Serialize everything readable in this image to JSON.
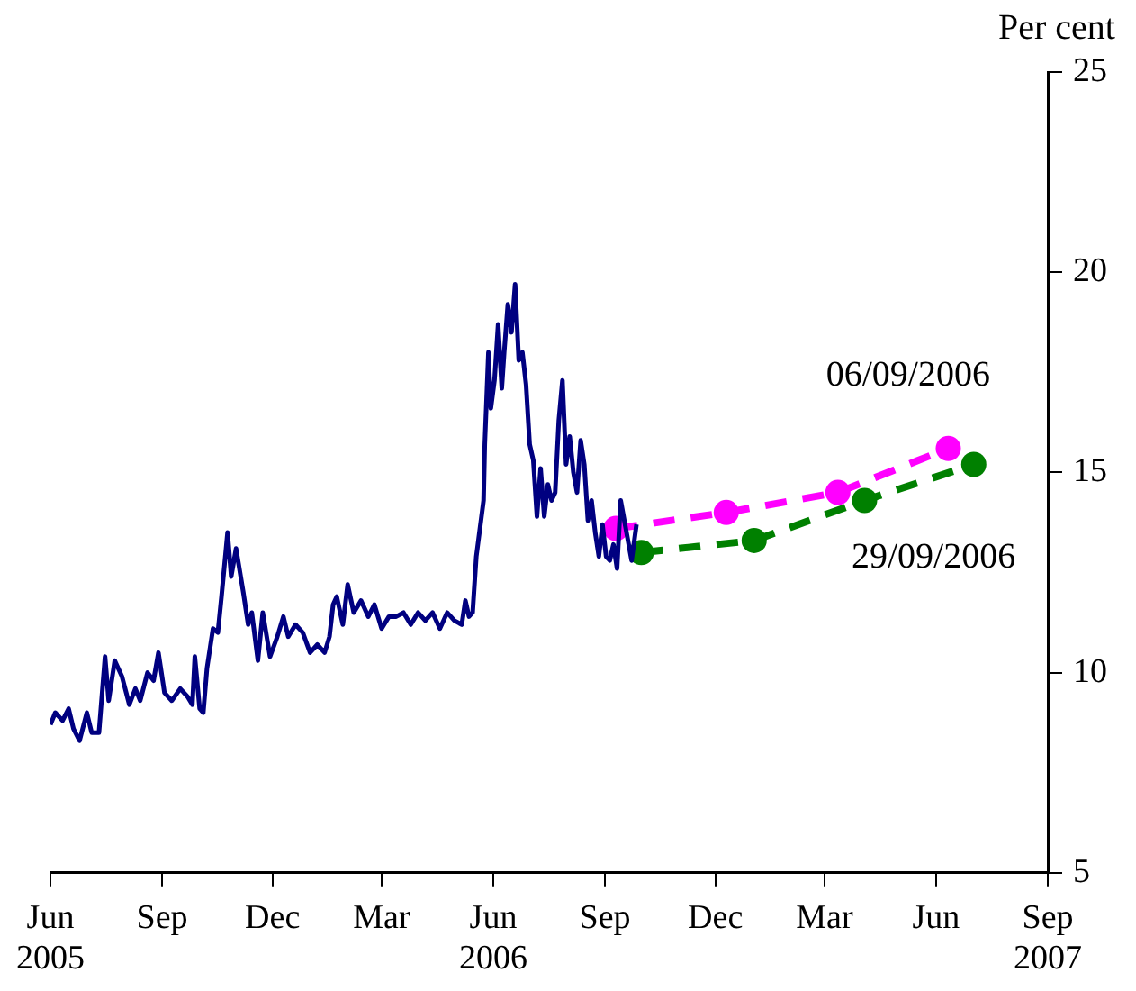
{
  "chart_data": {
    "type": "line",
    "ylabel": "Per cent",
    "xlim": [
      "2005-06",
      "2007-09"
    ],
    "xticks": [
      {
        "value": "2005-06",
        "label": "Jun 2005"
      },
      {
        "value": "2005-09",
        "label": "Sep"
      },
      {
        "value": "2005-12",
        "label": "Dec"
      },
      {
        "value": "2006-03",
        "label": "Mar"
      },
      {
        "value": "2006-06",
        "label": "Jun 2006"
      },
      {
        "value": "2006-09",
        "label": "Sep"
      },
      {
        "value": "2006-12",
        "label": "Dec"
      },
      {
        "value": "2007-03",
        "label": "Mar"
      },
      {
        "value": "2007-06",
        "label": "Jun"
      },
      {
        "value": "2007-09",
        "label": "Sep 2007"
      }
    ],
    "ylim": [
      5,
      25
    ],
    "yticks": [
      5,
      10,
      15,
      20,
      25
    ],
    "grid": false,
    "legend": false,
    "series": [
      {
        "color": "#000080",
        "marker": "none",
        "line_style": "solid",
        "x": [
          "2005-06-01",
          "2005-06-05",
          "2005-06-11",
          "2005-06-16",
          "2005-06-20",
          "2005-06-25",
          "2005-07-01",
          "2005-07-05",
          "2005-07-11",
          "2005-07-16",
          "2005-07-19",
          "2005-07-24",
          "2005-07-30",
          "2005-08-05",
          "2005-08-10",
          "2005-08-14",
          "2005-08-20",
          "2005-08-25",
          "2005-08-29",
          "2005-09-03",
          "2005-09-09",
          "2005-09-16",
          "2005-09-22",
          "2005-09-26",
          "2005-09-28",
          "2005-10-02",
          "2005-10-05",
          "2005-10-08",
          "2005-10-13",
          "2005-10-17",
          "2005-10-20",
          "2005-10-25",
          "2005-10-28",
          "2005-11-01",
          "2005-11-07",
          "2005-11-11",
          "2005-11-14",
          "2005-11-19",
          "2005-11-23",
          "2005-11-29",
          "2005-12-05",
          "2005-12-10",
          "2005-12-14",
          "2005-12-20",
          "2005-12-26",
          "2006-01-01",
          "2006-01-07",
          "2006-01-13",
          "2006-01-17",
          "2006-01-20",
          "2006-01-23",
          "2006-01-28",
          "2006-02-01",
          "2006-02-06",
          "2006-02-12",
          "2006-02-18",
          "2006-02-23",
          "2006-03-01",
          "2006-03-07",
          "2006-03-13",
          "2006-03-19",
          "2006-03-25",
          "2006-03-31",
          "2006-04-06",
          "2006-04-12",
          "2006-04-18",
          "2006-04-24",
          "2006-04-30",
          "2006-05-06",
          "2006-05-09",
          "2006-05-12",
          "2006-05-15",
          "2006-05-18",
          "2006-05-21",
          "2006-05-24",
          "2006-05-25",
          "2006-05-28",
          "2006-05-30",
          "2006-06-02",
          "2006-06-05",
          "2006-06-08",
          "2006-06-10",
          "2006-06-13",
          "2006-06-16",
          "2006-06-19",
          "2006-06-22",
          "2006-06-25",
          "2006-06-28",
          "2006-07-01",
          "2006-07-04",
          "2006-07-07",
          "2006-07-10",
          "2006-07-13",
          "2006-07-16",
          "2006-07-19",
          "2006-07-22",
          "2006-07-25",
          "2006-07-28",
          "2006-07-31",
          "2006-08-03",
          "2006-08-06",
          "2006-08-09",
          "2006-08-12",
          "2006-08-15",
          "2006-08-18",
          "2006-08-21",
          "2006-08-24",
          "2006-08-27",
          "2006-08-30",
          "2006-09-02",
          "2006-09-05",
          "2006-09-08",
          "2006-09-11",
          "2006-09-14",
          "2006-09-17",
          "2006-09-20",
          "2006-09-23",
          "2006-09-27"
        ],
        "values": [
          8.7,
          9.0,
          8.8,
          9.1,
          8.6,
          8.3,
          9.0,
          8.5,
          8.5,
          10.4,
          9.3,
          10.3,
          9.9,
          9.2,
          9.6,
          9.3,
          10.0,
          9.8,
          10.5,
          9.5,
          9.3,
          9.6,
          9.4,
          9.2,
          10.4,
          9.1,
          9.0,
          10.1,
          11.1,
          11.0,
          11.9,
          13.5,
          12.4,
          13.1,
          12.0,
          11.2,
          11.5,
          10.3,
          11.5,
          10.4,
          10.9,
          11.4,
          10.9,
          11.2,
          11.0,
          10.5,
          10.7,
          10.5,
          10.9,
          11.7,
          11.9,
          11.2,
          12.2,
          11.5,
          11.8,
          11.4,
          11.7,
          11.1,
          11.4,
          11.4,
          11.5,
          11.2,
          11.5,
          11.3,
          11.5,
          11.1,
          11.5,
          11.3,
          11.2,
          11.8,
          11.4,
          11.5,
          12.9,
          13.6,
          14.3,
          15.7,
          18.0,
          16.6,
          17.3,
          18.7,
          17.1,
          18.0,
          19.2,
          18.5,
          19.7,
          17.8,
          18.0,
          17.2,
          15.7,
          15.3,
          13.9,
          15.1,
          13.9,
          14.7,
          14.3,
          14.5,
          16.3,
          17.3,
          15.2,
          15.9,
          15.0,
          14.5,
          15.8,
          15.2,
          13.8,
          14.3,
          13.5,
          12.9,
          13.7,
          12.9,
          12.8,
          13.2,
          12.6,
          14.3,
          13.8,
          13.3,
          12.8,
          13.7
        ]
      },
      {
        "name": "06/09/2006",
        "color": "#ff00ff",
        "marker": "circle",
        "line_style": "dashed",
        "x": [
          "2006-09-10",
          "2006-12-10",
          "2007-03-12",
          "2007-06-11"
        ],
        "values": [
          13.6,
          14.0,
          14.5,
          15.6
        ]
      },
      {
        "name": "29/09/2006",
        "color": "#008000",
        "marker": "circle",
        "line_style": "dashed",
        "x": [
          "2006-10-01",
          "2007-01-02",
          "2007-04-03",
          "2007-07-02"
        ],
        "values": [
          13.0,
          13.3,
          14.3,
          15.2
        ]
      }
    ]
  }
}
